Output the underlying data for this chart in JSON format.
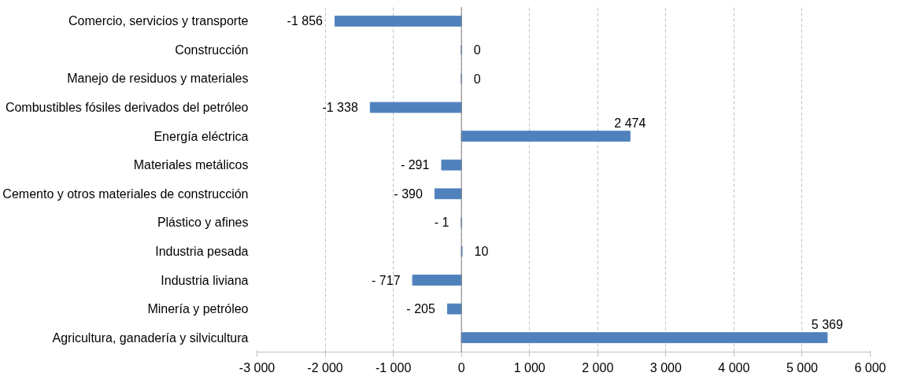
{
  "chart_data": {
    "type": "bar",
    "orientation": "horizontal",
    "categories": [
      "Comercio, servicios y transporte",
      "Construcción",
      "Manejo de residuos y materiales",
      "Combustibles fósiles derivados del petróleo",
      "Energía eléctrica",
      "Materiales metálicos",
      "Cemento y otros materiales de construcción",
      "Plástico y afines",
      "Industria pesada",
      "Industria liviana",
      "Minería y petróleo",
      "Agricultura, ganadería y silvicultura"
    ],
    "values": [
      -1856,
      0,
      0,
      -1338,
      2474,
      -291,
      -390,
      -1,
      10,
      -717,
      -205,
      5369
    ],
    "value_labels": [
      "-1 856",
      "0",
      "0",
      "-1 338",
      "2 474",
      "- 291",
      "- 390",
      "- 1",
      "10",
      "- 717",
      "- 205",
      "5 369"
    ],
    "color": "#4f81bd",
    "xlim": [
      -3000,
      6000
    ],
    "xticks": [
      {
        "value": -3000,
        "label": "-3 000"
      },
      {
        "value": -2000,
        "label": "-2 000"
      },
      {
        "value": -1000,
        "label": "-1 000"
      },
      0,
      {
        "value": 1000,
        "label": "1 000"
      },
      {
        "value": 2000,
        "label": "2 000"
      },
      {
        "value": 3000,
        "label": "3 000"
      },
      {
        "value": 4000,
        "label": "4 000"
      },
      {
        "value": 5000,
        "label": "5 000"
      },
      {
        "value": 6000,
        "label": "6 000"
      }
    ],
    "grid": "x"
  }
}
